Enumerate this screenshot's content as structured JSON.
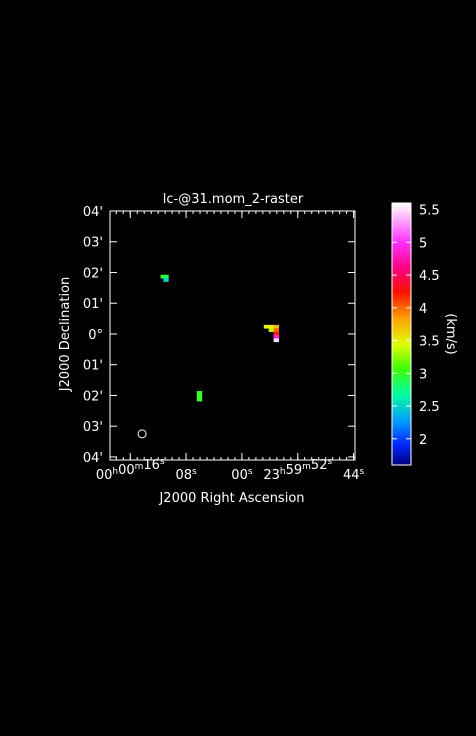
{
  "chart_data": {
    "type": "heatmap",
    "title": "lc-@31.mom_2-raster",
    "xlabel": "J2000 Right Ascension",
    "ylabel": "J2000 Declination",
    "colorbar_label": "(km/s)",
    "x_ticks": [
      {
        "label": "00h00m16s",
        "value": 16
      },
      {
        "label": "08s",
        "value": 8
      },
      {
        "label": "00s",
        "value": 0
      },
      {
        "label": "23h59m52s",
        "value": -8
      },
      {
        "label": "44s",
        "value": -16
      }
    ],
    "y_ticks": [
      {
        "label": "04'",
        "value": 4
      },
      {
        "label": "03'",
        "value": 3
      },
      {
        "label": "02'",
        "value": 2
      },
      {
        "label": "01'",
        "value": 1
      },
      {
        "label": "0°",
        "value": 0
      },
      {
        "label": "01'",
        "value": -1
      },
      {
        "label": "02'",
        "value": -2
      },
      {
        "label": "03'",
        "value": -3
      },
      {
        "label": "04'",
        "value": -4
      }
    ],
    "xlim": [
      18.9,
      -16.2
    ],
    "ylim": [
      -4.1,
      4.0
    ],
    "colorbar": {
      "min": 1.6,
      "max": 5.6,
      "ticks": [
        "2",
        "2.5",
        "3",
        "3.5",
        "4",
        "4.5",
        "5",
        "5.5"
      ],
      "tick_values": [
        2,
        2.5,
        3,
        3.5,
        4,
        4.5,
        5,
        5.5
      ]
    },
    "pixel_size": [
      0.73,
      0.11
    ],
    "pixels": [
      {
        "ra": 11.3,
        "dec": 1.87,
        "value": 2.95
      },
      {
        "ra": 10.9,
        "dec": 1.87,
        "value": 2.9
      },
      {
        "ra": 10.9,
        "dec": 1.76,
        "value": 2.5
      },
      {
        "ra": 6.1,
        "dec": -1.91,
        "value": 3.0
      },
      {
        "ra": 6.1,
        "dec": -2.02,
        "value": 3.0
      },
      {
        "ra": 6.1,
        "dec": -2.13,
        "value": 3.0
      },
      {
        "ra": -3.5,
        "dec": 0.24,
        "value": 3.45
      },
      {
        "ra": -4.2,
        "dec": 0.24,
        "value": 3.5
      },
      {
        "ra": -4.9,
        "dec": 0.24,
        "value": 3.7
      },
      {
        "ra": -4.2,
        "dec": 0.13,
        "value": 3.35
      },
      {
        "ra": -4.9,
        "dec": 0.13,
        "value": 4.0
      },
      {
        "ra": -4.9,
        "dec": 0.02,
        "value": 4.2
      },
      {
        "ra": -4.9,
        "dec": -0.09,
        "value": 4.9
      },
      {
        "ra": -4.9,
        "dec": -0.2,
        "value": 5.5
      }
    ],
    "beam": {
      "ra": 14.3,
      "dec": -3.25
    }
  }
}
